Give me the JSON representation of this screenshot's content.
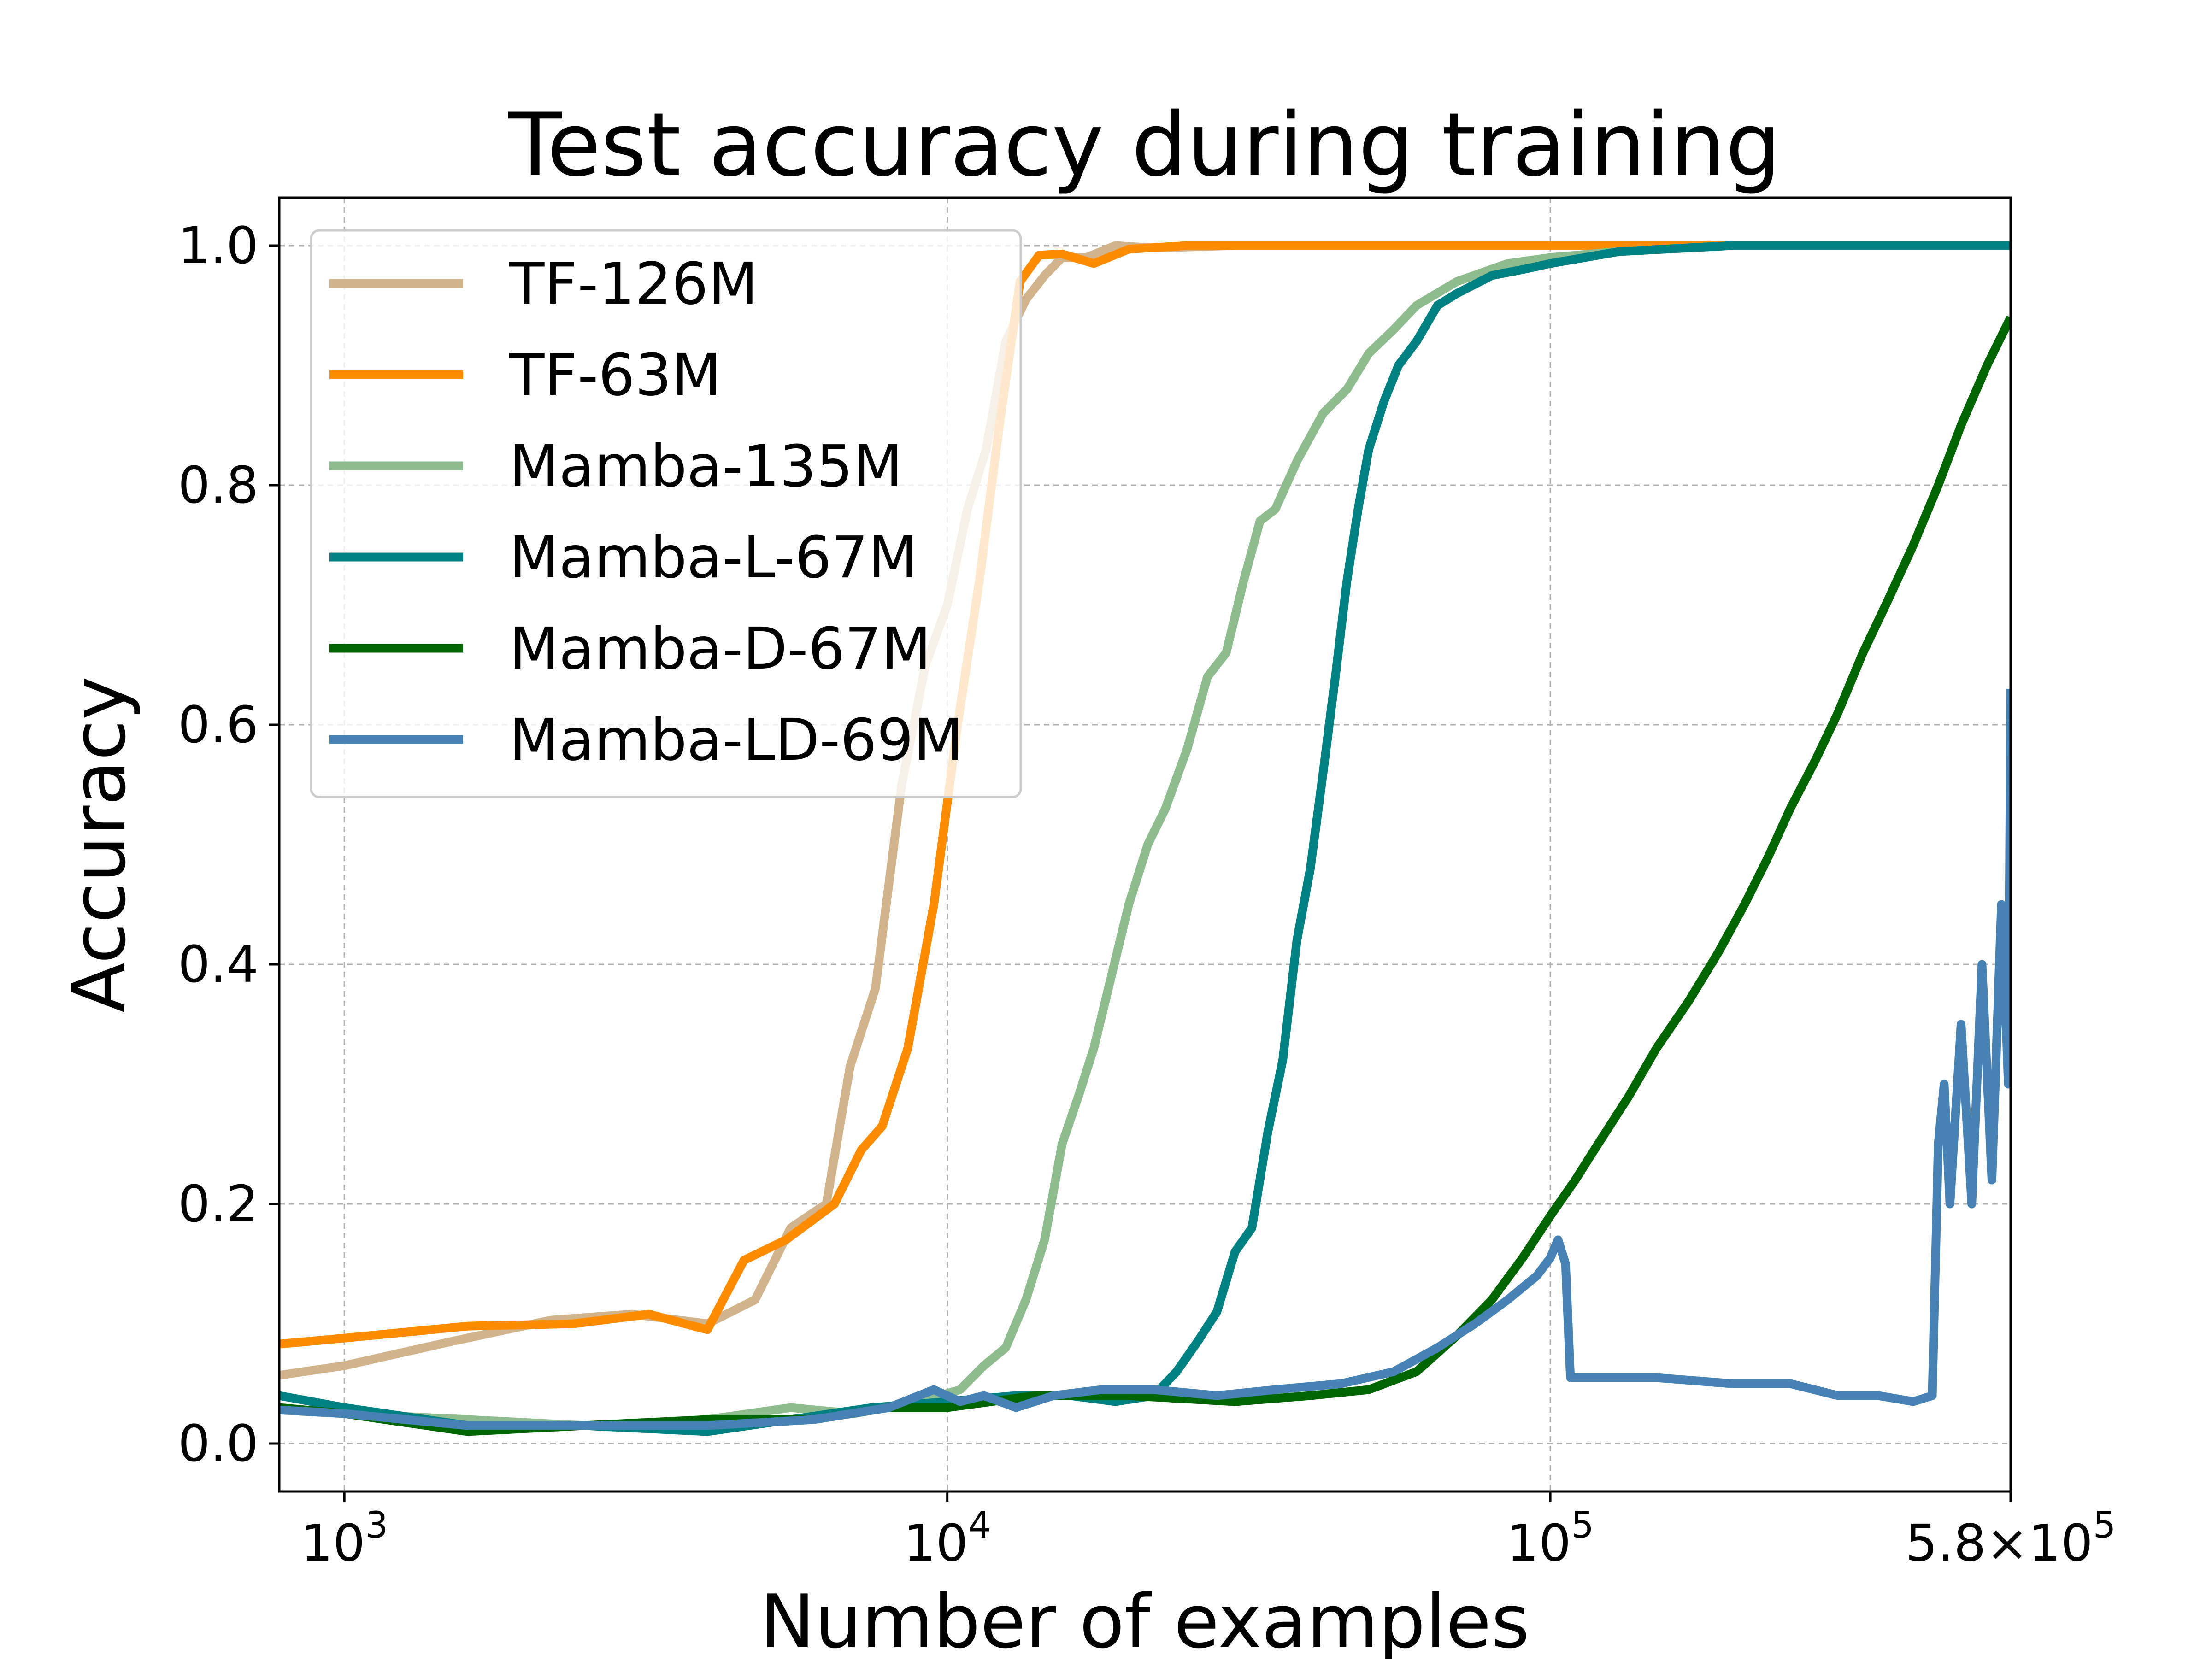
{
  "chart_data": {
    "type": "line",
    "title": "Test accuracy during training",
    "xlabel": "Number of examples",
    "ylabel": "Accuracy",
    "xscale": "log",
    "xlim": [
      780,
      580000
    ],
    "ylim": [
      -0.04,
      1.04
    ],
    "x_ticks": [
      {
        "value": 1000,
        "label_base": "10",
        "label_exp": "3"
      },
      {
        "value": 10000,
        "label_base": "10",
        "label_exp": "4"
      },
      {
        "value": 100000,
        "label_base": "10",
        "label_exp": "5"
      },
      {
        "value": 580000,
        "label_base": "5.8×10",
        "label_exp": "5"
      }
    ],
    "y_ticks": [
      {
        "value": 0.0,
        "label": "0.0"
      },
      {
        "value": 0.2,
        "label": "0.2"
      },
      {
        "value": 0.4,
        "label": "0.4"
      },
      {
        "value": 0.6,
        "label": "0.6"
      },
      {
        "value": 0.8,
        "label": "0.8"
      },
      {
        "value": 1.0,
        "label": "1.0"
      }
    ],
    "grid": true,
    "legend_position": "top-left",
    "series": [
      {
        "name": "TF-126M",
        "color": "#d2b48c",
        "x": [
          780,
          1000,
          1500,
          2200,
          3000,
          4000,
          4800,
          5500,
          6300,
          6900,
          7600,
          8400,
          9200,
          10000,
          10800,
          11600,
          12500,
          13500,
          14500,
          15500,
          17000,
          19000,
          22000,
          30000,
          50000,
          100000,
          200000,
          580000
        ],
        "y": [
          0.057,
          0.065,
          0.085,
          0.103,
          0.108,
          0.1,
          0.12,
          0.18,
          0.2,
          0.315,
          0.38,
          0.55,
          0.65,
          0.7,
          0.78,
          0.83,
          0.92,
          0.955,
          0.975,
          0.99,
          0.99,
          1.0,
          0.998,
          1.0,
          1.0,
          1.0,
          1.0,
          1.0
        ]
      },
      {
        "name": "TF-63M",
        "color": "#ff8c00",
        "x": [
          780,
          1000,
          1600,
          2400,
          3200,
          4000,
          4600,
          5400,
          6500,
          7200,
          7800,
          8600,
          9500,
          10400,
          11300,
          12200,
          13200,
          14200,
          15500,
          17500,
          20000,
          25000,
          40000,
          100000,
          200000,
          580000
        ],
        "y": [
          0.083,
          0.088,
          0.098,
          0.1,
          0.108,
          0.095,
          0.153,
          0.17,
          0.2,
          0.245,
          0.265,
          0.33,
          0.45,
          0.6,
          0.72,
          0.85,
          0.97,
          0.992,
          0.993,
          0.985,
          0.997,
          1.0,
          1.0,
          1.0,
          1.0,
          1.0
        ]
      },
      {
        "name": "Mamba-135M",
        "color": "#8fbc8f",
        "x": [
          780,
          1000,
          1600,
          2500,
          4000,
          5500,
          7000,
          9000,
          10500,
          11500,
          12500,
          13500,
          14500,
          15500,
          16500,
          17500,
          18500,
          20000,
          21500,
          23000,
          25000,
          27000,
          29000,
          31000,
          33000,
          35000,
          38000,
          42000,
          46000,
          50000,
          55000,
          60000,
          70000,
          85000,
          100000,
          130000,
          200000,
          580000
        ],
        "y": [
          0.03,
          0.025,
          0.02,
          0.015,
          0.02,
          0.03,
          0.025,
          0.035,
          0.045,
          0.065,
          0.08,
          0.12,
          0.17,
          0.25,
          0.29,
          0.33,
          0.38,
          0.45,
          0.5,
          0.53,
          0.58,
          0.64,
          0.66,
          0.72,
          0.77,
          0.78,
          0.82,
          0.86,
          0.88,
          0.91,
          0.93,
          0.95,
          0.97,
          0.985,
          0.99,
          0.995,
          1.0,
          1.0
        ]
      },
      {
        "name": "Mamba-L-67M",
        "color": "#008080",
        "x": [
          780,
          1000,
          1600,
          2500,
          4000,
          5500,
          7500,
          10000,
          13000,
          16000,
          19000,
          22000,
          24000,
          26000,
          28000,
          30000,
          32000,
          34000,
          36000,
          38000,
          40000,
          42000,
          44000,
          46000,
          48000,
          50000,
          53000,
          56000,
          60000,
          65000,
          70000,
          80000,
          90000,
          100000,
          130000,
          200000,
          580000
        ],
        "y": [
          0.04,
          0.03,
          0.015,
          0.015,
          0.01,
          0.02,
          0.03,
          0.035,
          0.04,
          0.04,
          0.035,
          0.04,
          0.06,
          0.085,
          0.11,
          0.16,
          0.18,
          0.26,
          0.32,
          0.42,
          0.48,
          0.56,
          0.64,
          0.72,
          0.78,
          0.83,
          0.87,
          0.9,
          0.92,
          0.95,
          0.96,
          0.975,
          0.98,
          0.985,
          0.995,
          1.0,
          1.0
        ]
      },
      {
        "name": "Mamba-D-67M",
        "color": "#006400",
        "x": [
          780,
          1000,
          1600,
          2500,
          4000,
          6000,
          8000,
          10000,
          14000,
          20000,
          30000,
          40000,
          50000,
          60000,
          70000,
          80000,
          90000,
          100000,
          110000,
          120000,
          135000,
          150000,
          170000,
          190000,
          210000,
          230000,
          250000,
          275000,
          300000,
          330000,
          360000,
          400000,
          440000,
          480000,
          530000,
          580000
        ],
        "y": [
          0.03,
          0.025,
          0.01,
          0.015,
          0.02,
          0.02,
          0.03,
          0.03,
          0.04,
          0.04,
          0.035,
          0.04,
          0.045,
          0.06,
          0.09,
          0.12,
          0.155,
          0.19,
          0.22,
          0.25,
          0.29,
          0.33,
          0.37,
          0.41,
          0.45,
          0.49,
          0.53,
          0.57,
          0.61,
          0.66,
          0.7,
          0.75,
          0.8,
          0.85,
          0.9,
          0.94
        ]
      },
      {
        "name": "Mamba-LD-69M",
        "color": "#4682b4",
        "x": [
          780,
          1000,
          1600,
          2500,
          4000,
          6000,
          8000,
          9500,
          10500,
          11500,
          13000,
          15000,
          18000,
          22000,
          28000,
          35000,
          45000,
          55000,
          65000,
          75000,
          85000,
          95000,
          100000,
          103000,
          106000,
          108000,
          120000,
          150000,
          200000,
          250000,
          300000,
          350000,
          400000,
          430000,
          440000,
          450000,
          460000,
          480000,
          500000,
          520000,
          540000,
          560000,
          575000,
          580000
        ],
        "y": [
          0.028,
          0.025,
          0.015,
          0.015,
          0.015,
          0.02,
          0.03,
          0.045,
          0.035,
          0.04,
          0.03,
          0.04,
          0.045,
          0.045,
          0.04,
          0.045,
          0.05,
          0.06,
          0.08,
          0.1,
          0.12,
          0.14,
          0.155,
          0.17,
          0.15,
          0.055,
          0.055,
          0.055,
          0.05,
          0.05,
          0.04,
          0.04,
          0.035,
          0.04,
          0.25,
          0.3,
          0.2,
          0.35,
          0.2,
          0.4,
          0.22,
          0.45,
          0.3,
          0.63
        ]
      }
    ]
  }
}
